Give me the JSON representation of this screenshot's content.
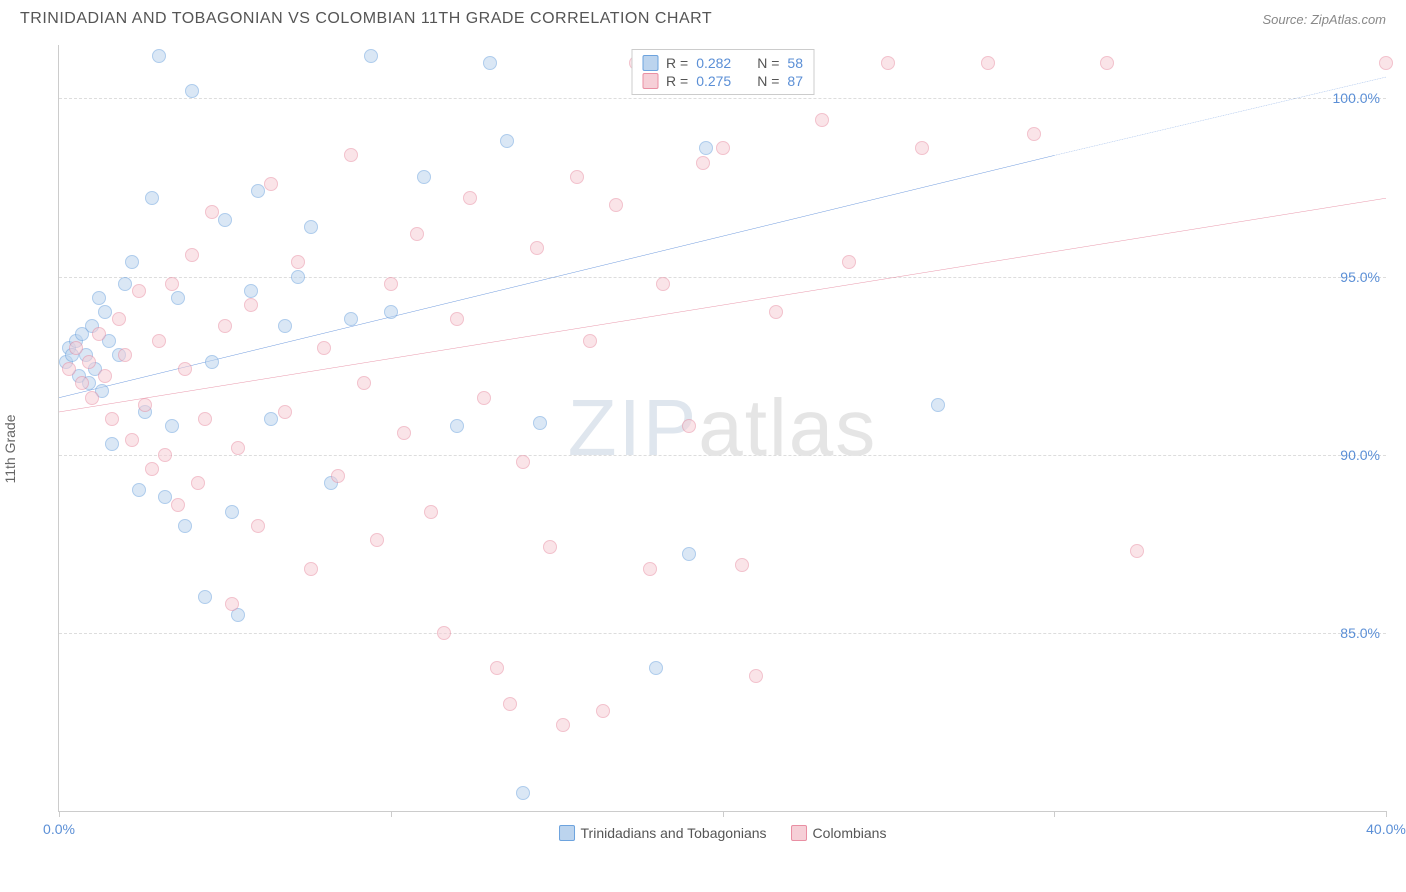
{
  "title": "TRINIDADIAN AND TOBAGONIAN VS COLOMBIAN 11TH GRADE CORRELATION CHART",
  "source_label": "Source: ZipAtlas.com",
  "ylabel": "11th Grade",
  "watermark_a": "ZIP",
  "watermark_b": "atlas",
  "chart": {
    "type": "scatter",
    "xlim": [
      0,
      40
    ],
    "ylim": [
      80,
      101.5
    ],
    "x_ticks": [
      0,
      10,
      20,
      30,
      40
    ],
    "x_tick_labels": [
      "0.0%",
      "",
      "",
      "",
      "40.0%"
    ],
    "y_ticks": [
      85,
      90,
      95,
      100
    ],
    "y_tick_labels": [
      "85.0%",
      "90.0%",
      "95.0%",
      "100.0%"
    ],
    "background_color": "#ffffff",
    "grid_color": "#dddddd",
    "axis_color": "#cccccc",
    "tick_label_color": "#5b8fd6",
    "axis_label_color": "#666666",
    "marker_radius": 7,
    "marker_opacity": 0.55,
    "series": [
      {
        "name": "Trinidadians and Tobagonians",
        "R": 0.282,
        "N": 58,
        "color_fill": "#bcd4ee",
        "color_stroke": "#6da3de",
        "trend_color": "#2f6fd0",
        "trend": {
          "x1": 0,
          "y1": 91.6,
          "x2": 30,
          "y2": 98.4,
          "x2_dash": 40,
          "y2_dash": 100.6
        },
        "points": [
          [
            0.2,
            92.6
          ],
          [
            0.3,
            93.0
          ],
          [
            0.4,
            92.8
          ],
          [
            0.5,
            93.2
          ],
          [
            0.6,
            92.2
          ],
          [
            0.7,
            93.4
          ],
          [
            0.8,
            92.8
          ],
          [
            0.9,
            92.0
          ],
          [
            1.0,
            93.6
          ],
          [
            1.1,
            92.4
          ],
          [
            1.2,
            94.4
          ],
          [
            1.3,
            91.8
          ],
          [
            1.4,
            94.0
          ],
          [
            1.5,
            93.2
          ],
          [
            1.6,
            90.3
          ],
          [
            1.8,
            92.8
          ],
          [
            2.0,
            94.8
          ],
          [
            2.2,
            95.4
          ],
          [
            2.4,
            89.0
          ],
          [
            2.6,
            91.2
          ],
          [
            2.8,
            97.2
          ],
          [
            3.0,
            101.2
          ],
          [
            3.2,
            88.8
          ],
          [
            3.4,
            90.8
          ],
          [
            3.6,
            94.4
          ],
          [
            3.8,
            88.0
          ],
          [
            4.0,
            100.2
          ],
          [
            4.4,
            86.0
          ],
          [
            4.6,
            92.6
          ],
          [
            5.0,
            96.6
          ],
          [
            5.2,
            88.4
          ],
          [
            5.4,
            85.5
          ],
          [
            5.8,
            94.6
          ],
          [
            6.0,
            97.4
          ],
          [
            6.4,
            91.0
          ],
          [
            6.8,
            93.6
          ],
          [
            7.2,
            95.0
          ],
          [
            7.6,
            96.4
          ],
          [
            8.2,
            89.2
          ],
          [
            8.8,
            93.8
          ],
          [
            9.4,
            101.2
          ],
          [
            10.0,
            94.0
          ],
          [
            11.0,
            97.8
          ],
          [
            12.0,
            90.8
          ],
          [
            13.0,
            101.0
          ],
          [
            13.5,
            98.8
          ],
          [
            14.0,
            80.5
          ],
          [
            14.5,
            90.9
          ],
          [
            17.5,
            101.0
          ],
          [
            18.0,
            84.0
          ],
          [
            19.0,
            87.2
          ],
          [
            19.5,
            98.6
          ],
          [
            20.0,
            100.5
          ],
          [
            26.5,
            91.4
          ]
        ]
      },
      {
        "name": "Colombians",
        "R": 0.275,
        "N": 87,
        "color_fill": "#f6cfd7",
        "color_stroke": "#e98fa3",
        "trend_color": "#e06a86",
        "trend": {
          "x1": 0,
          "y1": 91.2,
          "x2": 40,
          "y2": 97.2
        },
        "points": [
          [
            0.3,
            92.4
          ],
          [
            0.5,
            93.0
          ],
          [
            0.7,
            92.0
          ],
          [
            0.9,
            92.6
          ],
          [
            1.0,
            91.6
          ],
          [
            1.2,
            93.4
          ],
          [
            1.4,
            92.2
          ],
          [
            1.6,
            91.0
          ],
          [
            1.8,
            93.8
          ],
          [
            2.0,
            92.8
          ],
          [
            2.2,
            90.4
          ],
          [
            2.4,
            94.6
          ],
          [
            2.6,
            91.4
          ],
          [
            2.8,
            89.6
          ],
          [
            3.0,
            93.2
          ],
          [
            3.2,
            90.0
          ],
          [
            3.4,
            94.8
          ],
          [
            3.6,
            88.6
          ],
          [
            3.8,
            92.4
          ],
          [
            4.0,
            95.6
          ],
          [
            4.2,
            89.2
          ],
          [
            4.4,
            91.0
          ],
          [
            4.6,
            96.8
          ],
          [
            5.0,
            93.6
          ],
          [
            5.2,
            85.8
          ],
          [
            5.4,
            90.2
          ],
          [
            5.8,
            94.2
          ],
          [
            6.0,
            88.0
          ],
          [
            6.4,
            97.6
          ],
          [
            6.8,
            91.2
          ],
          [
            7.2,
            95.4
          ],
          [
            7.6,
            86.8
          ],
          [
            8.0,
            93.0
          ],
          [
            8.4,
            89.4
          ],
          [
            8.8,
            98.4
          ],
          [
            9.2,
            92.0
          ],
          [
            9.6,
            87.6
          ],
          [
            10.0,
            94.8
          ],
          [
            10.4,
            90.6
          ],
          [
            10.8,
            96.2
          ],
          [
            11.2,
            88.4
          ],
          [
            11.6,
            85.0
          ],
          [
            12.0,
            93.8
          ],
          [
            12.4,
            97.2
          ],
          [
            12.8,
            91.6
          ],
          [
            13.2,
            84.0
          ],
          [
            13.6,
            83.0
          ],
          [
            14.0,
            89.8
          ],
          [
            14.4,
            95.8
          ],
          [
            14.8,
            87.4
          ],
          [
            15.2,
            82.4
          ],
          [
            15.6,
            97.8
          ],
          [
            16.0,
            93.2
          ],
          [
            16.4,
            82.8
          ],
          [
            16.8,
            97.0
          ],
          [
            17.4,
            101.0
          ],
          [
            17.8,
            86.8
          ],
          [
            18.2,
            94.8
          ],
          [
            18.6,
            101.0
          ],
          [
            19.0,
            90.8
          ],
          [
            19.4,
            98.2
          ],
          [
            20.0,
            98.6
          ],
          [
            20.6,
            86.9
          ],
          [
            21.0,
            83.8
          ],
          [
            21.6,
            94.0
          ],
          [
            22.2,
            101.0
          ],
          [
            23.0,
            99.4
          ],
          [
            23.8,
            95.4
          ],
          [
            25.0,
            101.0
          ],
          [
            26.0,
            98.6
          ],
          [
            28.0,
            101.0
          ],
          [
            29.4,
            99.0
          ],
          [
            31.6,
            101.0
          ],
          [
            32.5,
            87.3
          ],
          [
            40.0,
            101.0
          ]
        ]
      }
    ]
  },
  "legend_top": {
    "rows": [
      {
        "swatch_fill": "#bcd4ee",
        "swatch_stroke": "#6da3de",
        "r_label": "R =",
        "r_val": "0.282",
        "n_label": "N =",
        "n_val": "58"
      },
      {
        "swatch_fill": "#f6cfd7",
        "swatch_stroke": "#e98fa3",
        "r_label": "R =",
        "r_val": "0.275",
        "n_label": "N =",
        "n_val": "87"
      }
    ]
  },
  "legend_bottom": {
    "items": [
      {
        "swatch_fill": "#bcd4ee",
        "swatch_stroke": "#6da3de",
        "label": "Trinidadians and Tobagonians"
      },
      {
        "swatch_fill": "#f6cfd7",
        "swatch_stroke": "#e98fa3",
        "label": "Colombians"
      }
    ]
  }
}
